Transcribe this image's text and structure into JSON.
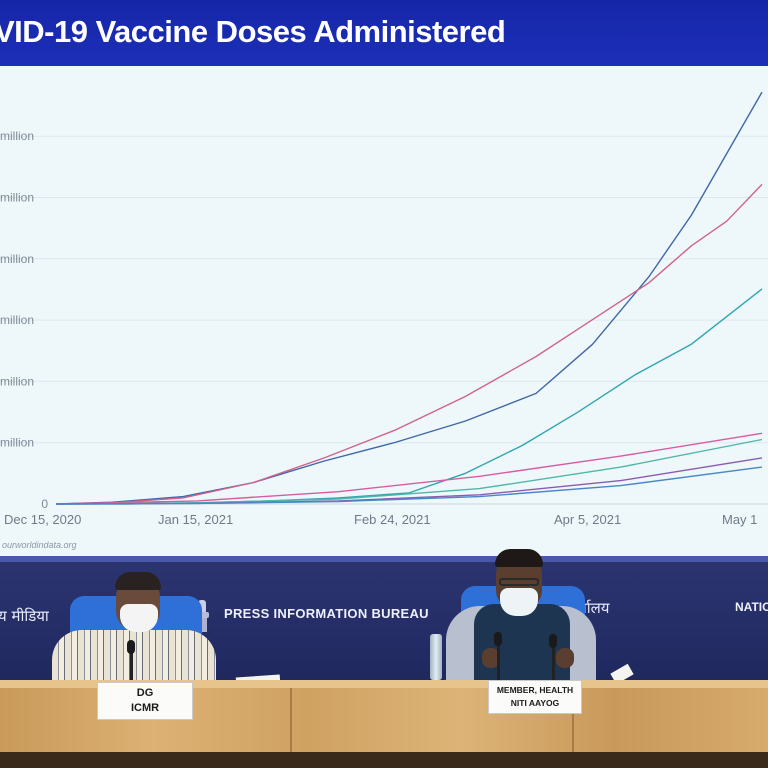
{
  "slide": {
    "title": "VID-19 Vaccine Doses Administered",
    "source": "ourworldindata.org"
  },
  "chart_data": {
    "type": "line",
    "title": "VID-19 Vaccine Doses Administered",
    "xlabel": "",
    "ylabel": "",
    "x_ticks": [
      "Dec 15, 2020",
      "Jan 15, 2021",
      "Feb 24, 2021",
      "Apr 5, 2021",
      "May 1"
    ],
    "y_tick_labels": [
      "0",
      "million",
      "million",
      "million",
      "million",
      "million",
      "million"
    ],
    "ylim": [
      0,
      6.8
    ],
    "grid": true,
    "legend": "none",
    "series": [
      {
        "color": "#3f66a8",
        "x": [
          0,
          0.08,
          0.18,
          0.28,
          0.38,
          0.48,
          0.58,
          0.68,
          0.76,
          0.84,
          0.9,
          0.95,
          1.0
        ],
        "values": [
          0,
          0.03,
          0.12,
          0.35,
          0.7,
          1.0,
          1.35,
          1.8,
          2.6,
          3.7,
          4.7,
          5.7,
          6.7
        ]
      },
      {
        "color": "#d0638a",
        "x": [
          0,
          0.08,
          0.18,
          0.28,
          0.38,
          0.48,
          0.58,
          0.68,
          0.76,
          0.84,
          0.9,
          0.95,
          1.0
        ],
        "values": [
          0,
          0.02,
          0.1,
          0.35,
          0.75,
          1.2,
          1.75,
          2.4,
          3.0,
          3.6,
          4.2,
          4.6,
          5.2
        ]
      },
      {
        "color": "#2fa6b0",
        "x": [
          0,
          0.1,
          0.2,
          0.3,
          0.4,
          0.5,
          0.58,
          0.66,
          0.74,
          0.82,
          0.9,
          1.0
        ],
        "values": [
          0,
          0.0,
          0.02,
          0.05,
          0.1,
          0.18,
          0.5,
          0.95,
          1.5,
          2.1,
          2.6,
          3.5
        ]
      },
      {
        "color": "#d85ca0",
        "x": [
          0,
          0.2,
          0.4,
          0.6,
          0.8,
          1.0
        ],
        "values": [
          0,
          0.05,
          0.2,
          0.45,
          0.78,
          1.15
        ]
      },
      {
        "color": "#52b5a8",
        "x": [
          0,
          0.2,
          0.4,
          0.6,
          0.8,
          1.0
        ],
        "values": [
          0,
          0.02,
          0.08,
          0.25,
          0.6,
          1.05
        ]
      },
      {
        "color": "#8a5bb0",
        "x": [
          0,
          0.2,
          0.4,
          0.6,
          0.8,
          1.0
        ],
        "values": [
          0,
          0.01,
          0.05,
          0.15,
          0.38,
          0.75
        ]
      },
      {
        "color": "#4a86c8",
        "x": [
          0,
          0.2,
          0.4,
          0.6,
          0.8,
          1.0
        ],
        "values": [
          0,
          0.01,
          0.04,
          0.12,
          0.3,
          0.6
        ]
      }
    ]
  },
  "backdrop": {
    "hindi_left": "य मीडिया",
    "pib": "PRESS INFORMATION BUREAU",
    "hindi_right": "र्यालय",
    "right_fragment": "NATIO"
  },
  "nameplates": {
    "left_line1": "DG",
    "left_line2": "ICMR",
    "right_line1": "MEMBER, HEALTH",
    "right_line2": "NITI AAYOG"
  }
}
